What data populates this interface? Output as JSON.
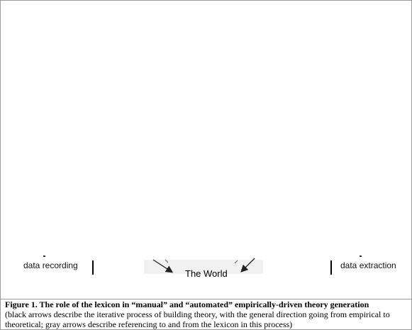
{
  "figure": {
    "left_label": "data recording",
    "right_label": "data extraction",
    "center_label": "The World"
  },
  "caption": {
    "title": "Figure 1. The role of the lexicon in “manual” and “automated” empirically-driven theory generation",
    "note": "(black arrows describe the iterative process of building theory, with the general direction going from empirical to theoretical; gray arrows describe referencing to and from the lexicon in this process)"
  }
}
